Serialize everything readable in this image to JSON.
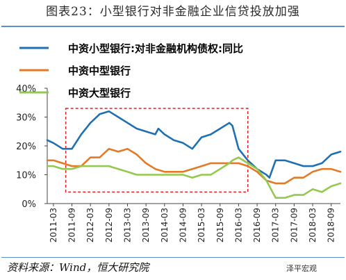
{
  "title": "图表23：小型银行对非金融企业信贷投放加强",
  "source": "资料来源：Wind，恒大研究院",
  "watermark": "泽平宏观",
  "chart_data": {
    "type": "line",
    "ylim": [
      0,
      40
    ],
    "yticks": [
      "0%",
      "10%",
      "20%",
      "30%",
      "40%"
    ],
    "ytick_values": [
      0,
      10,
      20,
      30,
      40
    ],
    "xticks": [
      "2011-03",
      "2011-09",
      "2012-03",
      "2012-09",
      "2013-03",
      "2013-09",
      "2014-03",
      "2014-09",
      "2015-03",
      "2015-09",
      "2016-03",
      "2016-09",
      "2017-03",
      "2017-09",
      "2018-03",
      "2018-09"
    ],
    "x_start": "2011-01",
    "x_end": "2018-12",
    "highlight_box": {
      "from": "2011-07",
      "to": "2016-06",
      "ymin": 4,
      "ymax": 33
    },
    "series": [
      {
        "name": "中资小型银行:对非金融机构债权:同比",
        "color": "#1f6fb3",
        "points": [
          [
            "2011-01",
            22
          ],
          [
            "2011-03",
            21
          ],
          [
            "2011-06",
            19
          ],
          [
            "2011-09",
            19
          ],
          [
            "2011-12",
            24
          ],
          [
            "2012-03",
            28
          ],
          [
            "2012-06",
            31
          ],
          [
            "2012-09",
            32
          ],
          [
            "2012-12",
            30
          ],
          [
            "2013-03",
            28
          ],
          [
            "2013-06",
            26
          ],
          [
            "2013-09",
            25
          ],
          [
            "2013-12",
            24
          ],
          [
            "2014-01",
            26
          ],
          [
            "2014-03",
            24
          ],
          [
            "2014-06",
            22
          ],
          [
            "2014-09",
            21
          ],
          [
            "2014-12",
            19
          ],
          [
            "2015-03",
            23
          ],
          [
            "2015-06",
            24
          ],
          [
            "2015-09",
            26
          ],
          [
            "2015-12",
            28
          ],
          [
            "2016-01",
            27
          ],
          [
            "2016-03",
            19
          ],
          [
            "2016-06",
            15
          ],
          [
            "2016-09",
            12
          ],
          [
            "2016-12",
            10
          ],
          [
            "2017-01",
            9
          ],
          [
            "2017-03",
            15
          ],
          [
            "2017-06",
            15
          ],
          [
            "2017-09",
            14
          ],
          [
            "2017-12",
            13
          ],
          [
            "2018-03",
            13
          ],
          [
            "2018-06",
            14
          ],
          [
            "2018-09",
            17
          ],
          [
            "2018-12",
            18
          ]
        ]
      },
      {
        "name": "中资中型银行",
        "color": "#e47a25",
        "points": [
          [
            "2011-01",
            15
          ],
          [
            "2011-03",
            15
          ],
          [
            "2011-06",
            14
          ],
          [
            "2011-09",
            13
          ],
          [
            "2011-12",
            13
          ],
          [
            "2012-03",
            16
          ],
          [
            "2012-06",
            16
          ],
          [
            "2012-09",
            19
          ],
          [
            "2012-12",
            18
          ],
          [
            "2013-03",
            19
          ],
          [
            "2013-06",
            17
          ],
          [
            "2013-09",
            14
          ],
          [
            "2013-12",
            12
          ],
          [
            "2014-03",
            11
          ],
          [
            "2014-06",
            11
          ],
          [
            "2014-09",
            11
          ],
          [
            "2014-12",
            12
          ],
          [
            "2015-03",
            13
          ],
          [
            "2015-06",
            14
          ],
          [
            "2015-09",
            14
          ],
          [
            "2015-12",
            14
          ],
          [
            "2016-03",
            14
          ],
          [
            "2016-06",
            13
          ],
          [
            "2016-09",
            11
          ],
          [
            "2016-12",
            8
          ],
          [
            "2017-03",
            7
          ],
          [
            "2017-06",
            7
          ],
          [
            "2017-09",
            9
          ],
          [
            "2017-12",
            9
          ],
          [
            "2018-03",
            11
          ],
          [
            "2018-06",
            12
          ],
          [
            "2018-09",
            12
          ],
          [
            "2018-12",
            11
          ]
        ]
      },
      {
        "name": "中资大型银行",
        "color": "#92c94e",
        "points": [
          [
            "2011-01",
            13
          ],
          [
            "2011-03",
            13
          ],
          [
            "2011-06",
            12
          ],
          [
            "2011-09",
            12
          ],
          [
            "2011-12",
            13
          ],
          [
            "2012-03",
            13
          ],
          [
            "2012-06",
            13
          ],
          [
            "2012-09",
            13
          ],
          [
            "2012-12",
            12
          ],
          [
            "2013-03",
            11
          ],
          [
            "2013-06",
            10
          ],
          [
            "2013-09",
            10
          ],
          [
            "2013-12",
            10
          ],
          [
            "2014-03",
            10
          ],
          [
            "2014-06",
            10
          ],
          [
            "2014-09",
            10
          ],
          [
            "2014-12",
            9
          ],
          [
            "2015-03",
            10
          ],
          [
            "2015-06",
            10
          ],
          [
            "2015-09",
            12
          ],
          [
            "2015-12",
            14
          ],
          [
            "2016-01",
            15
          ],
          [
            "2016-03",
            16
          ],
          [
            "2016-06",
            14
          ],
          [
            "2016-09",
            12
          ],
          [
            "2016-12",
            8
          ],
          [
            "2017-03",
            2
          ],
          [
            "2017-06",
            2
          ],
          [
            "2017-09",
            3
          ],
          [
            "2017-12",
            3
          ],
          [
            "2018-03",
            5
          ],
          [
            "2018-06",
            4
          ],
          [
            "2018-09",
            6
          ],
          [
            "2018-12",
            7
          ]
        ]
      }
    ]
  }
}
